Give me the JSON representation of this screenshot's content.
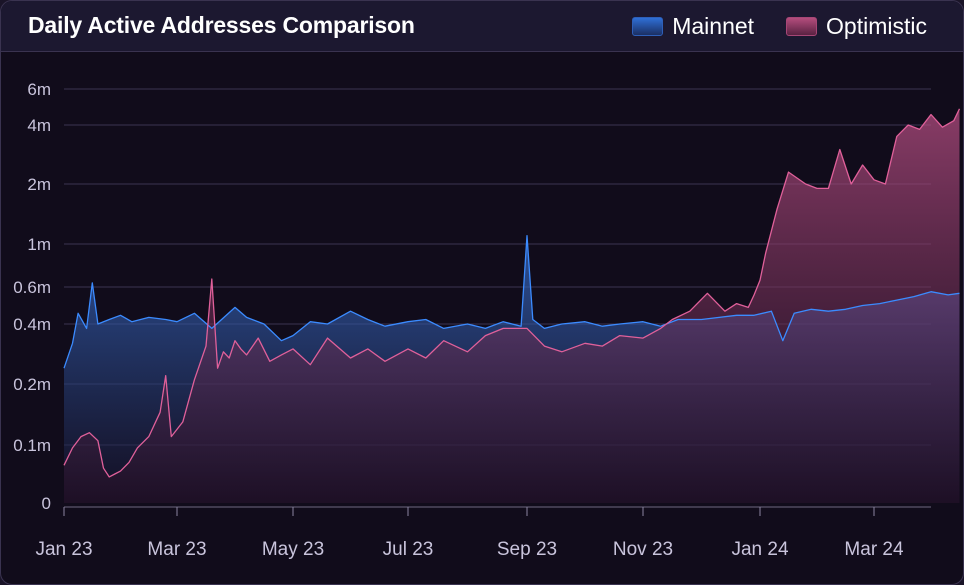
{
  "chart_data": {
    "type": "area",
    "title": "Daily Active Addresses Comparison",
    "y_scale": "log",
    "yticks": [
      {
        "value": 0,
        "label": "0"
      },
      {
        "value": 100000,
        "label": "0.1m"
      },
      {
        "value": 200000,
        "label": "0.2m"
      },
      {
        "value": 400000,
        "label": "0.4m"
      },
      {
        "value": 600000,
        "label": "0.6m"
      },
      {
        "value": 1000000,
        "label": "1m"
      },
      {
        "value": 2000000,
        "label": "2m"
      },
      {
        "value": 4000000,
        "label": "4m"
      },
      {
        "value": 6000000,
        "label": "6m"
      }
    ],
    "xticks": [
      "Jan 23",
      "Mar 23",
      "May 23",
      "Jul 23",
      "Sep 23",
      "Nov 23",
      "Jan 24",
      "Mar 24"
    ],
    "x_months_start": "Jan 23",
    "x_months_end": "Apr 24",
    "series": [
      {
        "name": "Mainnet",
        "color": "#3b8bff",
        "x_month": [
          0,
          0.15,
          0.25,
          0.4,
          0.5,
          0.6,
          0.8,
          1.0,
          1.2,
          1.5,
          1.8,
          2.0,
          2.3,
          2.6,
          3.0,
          3.2,
          3.5,
          3.8,
          4.0,
          4.3,
          4.6,
          5.0,
          5.3,
          5.6,
          6.0,
          6.3,
          6.6,
          7.0,
          7.3,
          7.6,
          7.9,
          8.0,
          8.1,
          8.3,
          8.6,
          9.0,
          9.3,
          9.6,
          10.0,
          10.3,
          10.6,
          11.0,
          11.3,
          11.6,
          11.9,
          12.2,
          12.4,
          12.6,
          12.9,
          13.2,
          13.5,
          13.8,
          14.1,
          14.4,
          14.7,
          15.0,
          15.3,
          15.5
        ],
        "values": [
          240000,
          320000,
          450000,
          380000,
          630000,
          400000,
          420000,
          440000,
          410000,
          430000,
          420000,
          410000,
          450000,
          380000,
          480000,
          430000,
          400000,
          330000,
          350000,
          410000,
          400000,
          460000,
          420000,
          390000,
          410000,
          420000,
          380000,
          400000,
          380000,
          410000,
          390000,
          1100000,
          420000,
          380000,
          400000,
          410000,
          390000,
          400000,
          410000,
          390000,
          420000,
          420000,
          430000,
          440000,
          440000,
          460000,
          330000,
          450000,
          470000,
          460000,
          470000,
          490000,
          500000,
          520000,
          540000,
          570000,
          550000,
          560000
        ]
      },
      {
        "name": "Optimistic",
        "color": "#e0609a",
        "x_month": [
          0,
          0.15,
          0.3,
          0.45,
          0.6,
          0.7,
          0.8,
          0.9,
          1.0,
          1.15,
          1.3,
          1.5,
          1.7,
          1.8,
          1.9,
          2.1,
          2.3,
          2.5,
          2.6,
          2.7,
          2.8,
          2.9,
          3.0,
          3.1,
          3.2,
          3.4,
          3.6,
          3.8,
          4.0,
          4.3,
          4.6,
          5.0,
          5.3,
          5.6,
          6.0,
          6.3,
          6.6,
          7.0,
          7.3,
          7.6,
          8.0,
          8.3,
          8.6,
          9.0,
          9.3,
          9.6,
          10.0,
          10.3,
          10.5,
          10.8,
          11.1,
          11.4,
          11.6,
          11.8,
          11.9,
          12.0,
          12.1,
          12.3,
          12.5,
          12.8,
          13.0,
          13.2,
          13.4,
          13.6,
          13.8,
          14.0,
          14.2,
          14.4,
          14.6,
          14.8,
          15.0,
          15.2,
          15.4,
          15.5
        ],
        "values": [
          65000,
          95000,
          110000,
          115000,
          105000,
          60000,
          45000,
          50000,
          55000,
          70000,
          95000,
          110000,
          145000,
          220000,
          110000,
          130000,
          210000,
          310000,
          660000,
          240000,
          290000,
          270000,
          330000,
          300000,
          280000,
          340000,
          260000,
          280000,
          300000,
          250000,
          340000,
          270000,
          300000,
          260000,
          300000,
          270000,
          330000,
          290000,
          350000,
          380000,
          380000,
          310000,
          290000,
          320000,
          310000,
          350000,
          340000,
          380000,
          420000,
          460000,
          560000,
          460000,
          500000,
          480000,
          550000,
          650000,
          900000,
          1500000,
          2300000,
          2000000,
          1900000,
          1900000,
          3000000,
          2000000,
          2500000,
          2100000,
          2000000,
          3500000,
          4000000,
          3800000,
          4500000,
          3900000,
          4200000,
          4800000
        ]
      }
    ]
  }
}
